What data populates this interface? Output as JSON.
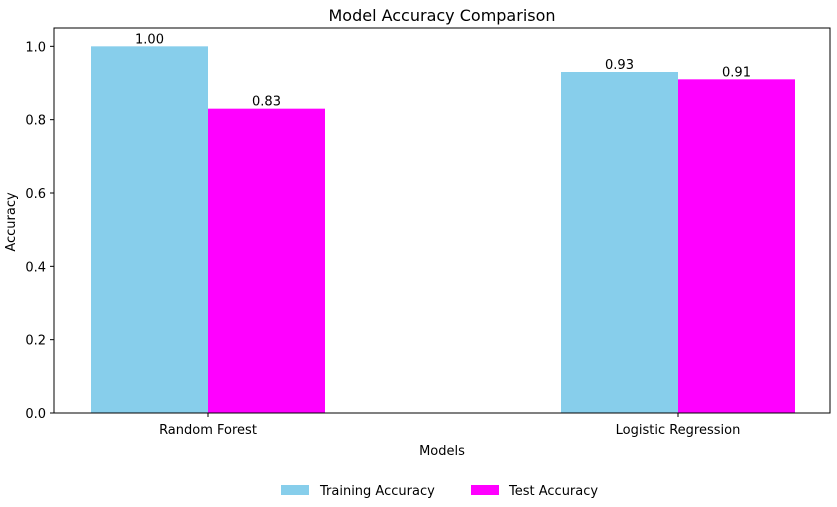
{
  "chart_data": {
    "type": "bar",
    "title": "Model Accuracy Comparison",
    "xlabel": "Models",
    "ylabel": "Accuracy",
    "categories": [
      "Random Forest",
      "Logistic Regression"
    ],
    "series": [
      {
        "name": "Training Accuracy",
        "values": [
          1.0,
          0.93
        ],
        "color": "#87ceeb"
      },
      {
        "name": "Test Accuracy",
        "values": [
          0.83,
          0.91
        ],
        "color": "#ff00ff"
      }
    ],
    "data_labels": [
      [
        "1.00",
        "0.93"
      ],
      [
        "0.83",
        "0.91"
      ]
    ],
    "ylim": [
      0,
      1.05
    ],
    "yticks": [
      0.0,
      0.2,
      0.4,
      0.6,
      0.8,
      1.0
    ],
    "ytick_labels": [
      "0.0",
      "0.2",
      "0.4",
      "0.6",
      "0.8",
      "1.0"
    ],
    "legend_position": "bottom-center",
    "grid": false
  }
}
